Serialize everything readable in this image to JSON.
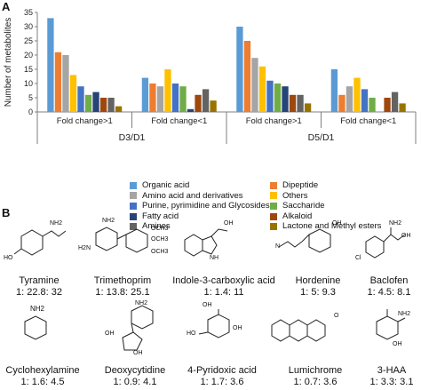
{
  "panel_a_label": "A",
  "panel_b_label": "B",
  "colors": {
    "Organic acid": "#5b9bd5",
    "Dipeptide": "#ed7d31",
    "Amino acid and derivatives": "#a5a5a5",
    "Others": "#ffc000",
    "Purine, pyrimidine and Glycosides": "#4472c4",
    "Saccharide": "#70ad47",
    "Fatty acid": "#264478",
    "Alkaloid": "#9e480e",
    "Amines": "#636363",
    "Lactone and Methyl esters": "#997300"
  },
  "chart_data": {
    "type": "bar",
    "ylabel": "Number of metabolites",
    "ylim": [
      0,
      35
    ],
    "yticks": [
      "0",
      "5",
      "10",
      "15",
      "20",
      "25",
      "30",
      "35"
    ],
    "grid": false,
    "legend_position": "bottom",
    "series": [
      {
        "name": "Organic acid",
        "values": [
          33,
          12,
          30,
          15
        ]
      },
      {
        "name": "Dipeptide",
        "values": [
          21,
          10,
          25,
          6
        ]
      },
      {
        "name": "Amino acid and derivatives",
        "values": [
          20,
          9,
          19,
          9
        ]
      },
      {
        "name": "Others",
        "values": [
          13,
          15,
          16,
          12
        ]
      },
      {
        "name": "Purine, pyrimidine and Glycosides",
        "values": [
          9,
          10,
          11,
          8
        ]
      },
      {
        "name": "Saccharide",
        "values": [
          6,
          9,
          10,
          5
        ]
      },
      {
        "name": "Fatty acid",
        "values": [
          7,
          1,
          9,
          0
        ]
      },
      {
        "name": "Alkaloid",
        "values": [
          5,
          6,
          6,
          5
        ]
      },
      {
        "name": "Amines",
        "values": [
          5,
          8,
          6,
          7
        ]
      },
      {
        "name": "Lactone and Methyl esters",
        "values": [
          2,
          4,
          3,
          3
        ]
      }
    ],
    "categories": [
      "Fold change>1",
      "Fold change<1",
      "Fold change>1",
      "Fold change<1"
    ],
    "groups": [
      "D3/D1",
      "D5/D1"
    ]
  },
  "compounds": [
    {
      "name": "Tyramine",
      "ratio": "1: 22.8: 32"
    },
    {
      "name": "Trimethoprim",
      "ratio": "1: 13.8: 25.1"
    },
    {
      "name": "Indole-3-carboxylic acid",
      "ratio": "1: 1.4: 11"
    },
    {
      "name": "Hordenine",
      "ratio": "1: 5: 9.3"
    },
    {
      "name": "Baclofen",
      "ratio": "1: 4.5: 8.1"
    },
    {
      "name": "Cyclohexylamine",
      "ratio": "1: 1.6: 4.5"
    },
    {
      "name": "Deoxycytidine",
      "ratio": "1: 0.9: 4.1"
    },
    {
      "name": "4-Pyridoxic acid",
      "ratio": "1: 1.7: 3.6"
    },
    {
      "name": "Lumichrome",
      "ratio": "1: 0.7: 3.6"
    },
    {
      "name": "3-HAA",
      "ratio": "1: 3.3: 3.1"
    }
  ],
  "atoms": {
    "oh": "OH",
    "ho": "HO",
    "nh2": "NH2",
    "h2n": "H2N",
    "n": "N",
    "nh": "NH",
    "o": "O",
    "och3": "OCH3",
    "cl": "Cl"
  }
}
